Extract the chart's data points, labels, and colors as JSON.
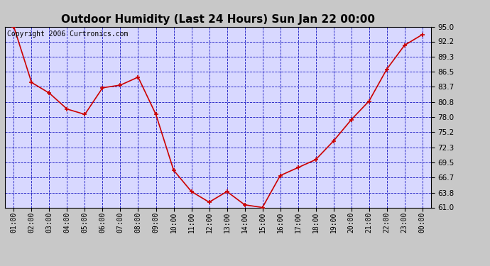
{
  "title": "Outdoor Humidity (Last 24 Hours) Sun Jan 22 00:00",
  "copyright": "Copyright 2006 Curtronics.com",
  "x_labels": [
    "01:00",
    "02:00",
    "03:00",
    "04:00",
    "05:00",
    "06:00",
    "07:00",
    "08:00",
    "09:00",
    "10:00",
    "11:00",
    "12:00",
    "13:00",
    "14:00",
    "15:00",
    "16:00",
    "17:00",
    "18:00",
    "19:00",
    "20:00",
    "21:00",
    "22:00",
    "23:00",
    "00:00"
  ],
  "y_values": [
    95.0,
    84.5,
    82.5,
    79.5,
    78.5,
    83.5,
    84.0,
    85.5,
    78.5,
    68.0,
    64.0,
    62.0,
    64.0,
    61.5,
    61.0,
    67.0,
    68.5,
    70.0,
    73.5,
    77.5,
    81.0,
    87.0,
    91.5,
    93.5
  ],
  "ylim_min": 61.0,
  "ylim_max": 95.0,
  "yticks": [
    61.0,
    63.8,
    66.7,
    69.5,
    72.3,
    75.2,
    78.0,
    80.8,
    83.7,
    86.5,
    89.3,
    92.2,
    95.0
  ],
  "line_color": "#cc0000",
  "marker_color": "#cc0000",
  "bg_color": "#c8c8c8",
  "plot_bg_color": "#d8d8ff",
  "grid_color": "#0000bb",
  "title_color": "#000000",
  "title_fontsize": 11,
  "copyright_fontsize": 7,
  "tick_label_color": "#000000",
  "axis_label_color": "#000000"
}
